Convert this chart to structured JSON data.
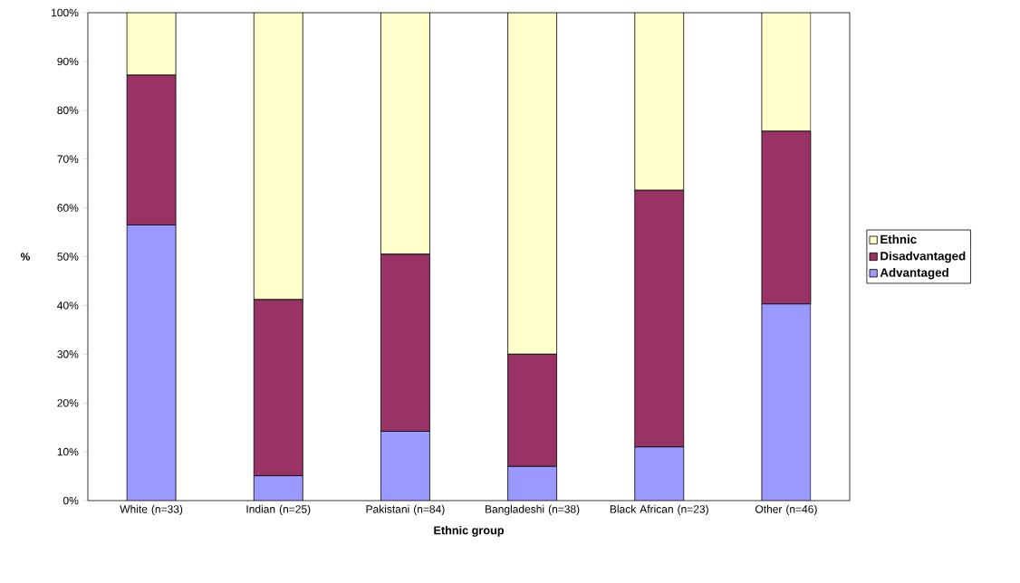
{
  "chart_data": {
    "type": "bar",
    "stacked": true,
    "xlabel": "Ethnic group",
    "ylabel": "%",
    "categories": [
      "White (n=33)",
      "Indian (n=25)",
      "Pakistani (n=84)",
      "Bangladeshi (n=38)",
      "Black African (n=23)",
      "Other (n=46)"
    ],
    "series": [
      {
        "name": "Advantaged",
        "color": "#9999ff",
        "values": [
          56.5,
          5.1,
          14.2,
          7.0,
          11.0,
          40.3
        ]
      },
      {
        "name": "Disadvantaged",
        "color": "#993366",
        "values": [
          30.7,
          36.1,
          36.3,
          23.0,
          52.6,
          35.4
        ]
      },
      {
        "name": "Ethnic",
        "color": "#ffffcc",
        "values": [
          12.8,
          58.8,
          49.5,
          70.0,
          36.4,
          24.3
        ]
      }
    ],
    "ylim": [
      0,
      100
    ],
    "yticks": [
      {
        "value": 0,
        "label": "0%"
      },
      {
        "value": 10,
        "label": "10%"
      },
      {
        "value": 20,
        "label": "20%"
      },
      {
        "value": 30,
        "label": "30%"
      },
      {
        "value": 40,
        "label": "40%"
      },
      {
        "value": 50,
        "label": "50%"
      },
      {
        "value": 60,
        "label": "60%"
      },
      {
        "value": 70,
        "label": "70%"
      },
      {
        "value": 80,
        "label": "80%"
      },
      {
        "value": 90,
        "label": "90%"
      },
      {
        "value": 100,
        "label": "100%"
      }
    ],
    "legend": "right"
  }
}
